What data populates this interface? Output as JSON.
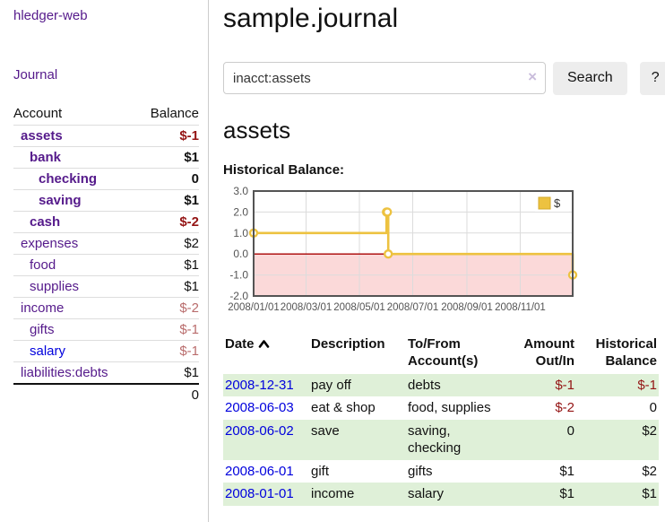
{
  "app": {
    "brand": "hledger-web"
  },
  "nav": {
    "journal": "Journal"
  },
  "sidebar": {
    "header": {
      "account": "Account",
      "balance": "Balance"
    },
    "accounts": [
      {
        "name": "assets",
        "depth": 1,
        "balance": "$-1",
        "bold": true,
        "balance_style": "neg-strong"
      },
      {
        "name": "bank",
        "depth": 2,
        "balance": "$1",
        "bold": true,
        "balance_style": ""
      },
      {
        "name": "checking",
        "depth": 3,
        "balance": "0",
        "bold": true,
        "balance_style": ""
      },
      {
        "name": "saving",
        "depth": 3,
        "balance": "$1",
        "bold": true,
        "balance_style": ""
      },
      {
        "name": "cash",
        "depth": 2,
        "balance": "$-2",
        "bold": true,
        "balance_style": "neg-strong"
      },
      {
        "name": "expenses",
        "depth": 1,
        "balance": "$2",
        "bold": false,
        "balance_style": ""
      },
      {
        "name": "food",
        "depth": 2,
        "balance": "$1",
        "bold": false,
        "balance_style": ""
      },
      {
        "name": "supplies",
        "depth": 2,
        "balance": "$1",
        "bold": false,
        "balance_style": ""
      },
      {
        "name": "income",
        "depth": 1,
        "balance": "$-2",
        "bold": false,
        "balance_style": "neg-muted"
      },
      {
        "name": "gifts",
        "depth": 2,
        "balance": "$-1",
        "bold": false,
        "balance_style": "neg-muted"
      },
      {
        "name": "salary",
        "depth": 2,
        "balance": "$-1",
        "bold": false,
        "balance_style": "neg-muted",
        "link_blue": true
      },
      {
        "name": "liabilities:debts",
        "depth": 1,
        "balance": "$1",
        "bold": false,
        "balance_style": ""
      }
    ],
    "total": "0"
  },
  "header": {
    "title": "sample.journal"
  },
  "search": {
    "value": "inacct:assets",
    "clear_icon": "×",
    "button": "Search",
    "help_button": "?"
  },
  "register": {
    "heading": "assets",
    "chart_label": "Historical Balance:",
    "table": {
      "headers": {
        "date": "Date",
        "description": "Description",
        "accounts": "To/From Account(s)",
        "amount": "Amount Out/In",
        "balance": "Historical Balance"
      },
      "rows": [
        {
          "date": "2008-12-31",
          "description": "pay off",
          "accounts": "debts",
          "amount": "$-1",
          "amount_neg": true,
          "balance": "$-1",
          "balance_neg": true
        },
        {
          "date": "2008-06-03",
          "description": "eat & shop",
          "accounts": "food, supplies",
          "amount": "$-2",
          "amount_neg": true,
          "balance": "0",
          "balance_neg": false
        },
        {
          "date": "2008-06-02",
          "description": "save",
          "accounts": "saving, checking",
          "amount": "0",
          "amount_neg": false,
          "balance": "$2",
          "balance_neg": false
        },
        {
          "date": "2008-06-01",
          "description": "gift",
          "accounts": "gifts",
          "amount": "$1",
          "amount_neg": false,
          "balance": "$2",
          "balance_neg": false
        },
        {
          "date": "2008-01-01",
          "description": "income",
          "accounts": "salary",
          "amount": "$1",
          "amount_neg": false,
          "balance": "$1",
          "balance_neg": false
        }
      ]
    }
  },
  "chart_data": {
    "type": "line",
    "step": true,
    "title": "Historical Balance:",
    "series": [
      {
        "name": "$",
        "color": "#edc240",
        "points": [
          [
            "2008-01-01",
            1
          ],
          [
            "2008-06-01",
            2
          ],
          [
            "2008-06-02",
            2
          ],
          [
            "2008-06-03",
            0
          ],
          [
            "2008-12-31",
            -1
          ]
        ]
      }
    ],
    "xlim": [
      "2008-01-01",
      "2008-12-31"
    ],
    "ylim": [
      -2,
      3
    ],
    "yticks": [
      "3.0",
      "2.0",
      "1.0",
      "0.0",
      "-1.0",
      "-2.0"
    ],
    "ytick_values": [
      3,
      2,
      1,
      0,
      -1,
      -2
    ],
    "xticks": [
      "2008/01/01",
      "2008/03/01",
      "2008/05/01",
      "2008/07/01",
      "2008/09/01",
      "2008/11/01"
    ],
    "xtick_dates": [
      "2008-01-01",
      "2008-03-01",
      "2008-05-01",
      "2008-07-01",
      "2008-09-01",
      "2008-11-01"
    ],
    "legend": {
      "label": "$",
      "position": "top-right"
    },
    "grid": true,
    "colors": {
      "grid_line": "#dcdcdc",
      "plot_border": "#545454",
      "tick_text": "#545454",
      "negative_region": "#fbd9d9",
      "zero_line": "#a80000",
      "marker_fill": "#ffffff",
      "legend_box_border": "#d4a928"
    }
  }
}
